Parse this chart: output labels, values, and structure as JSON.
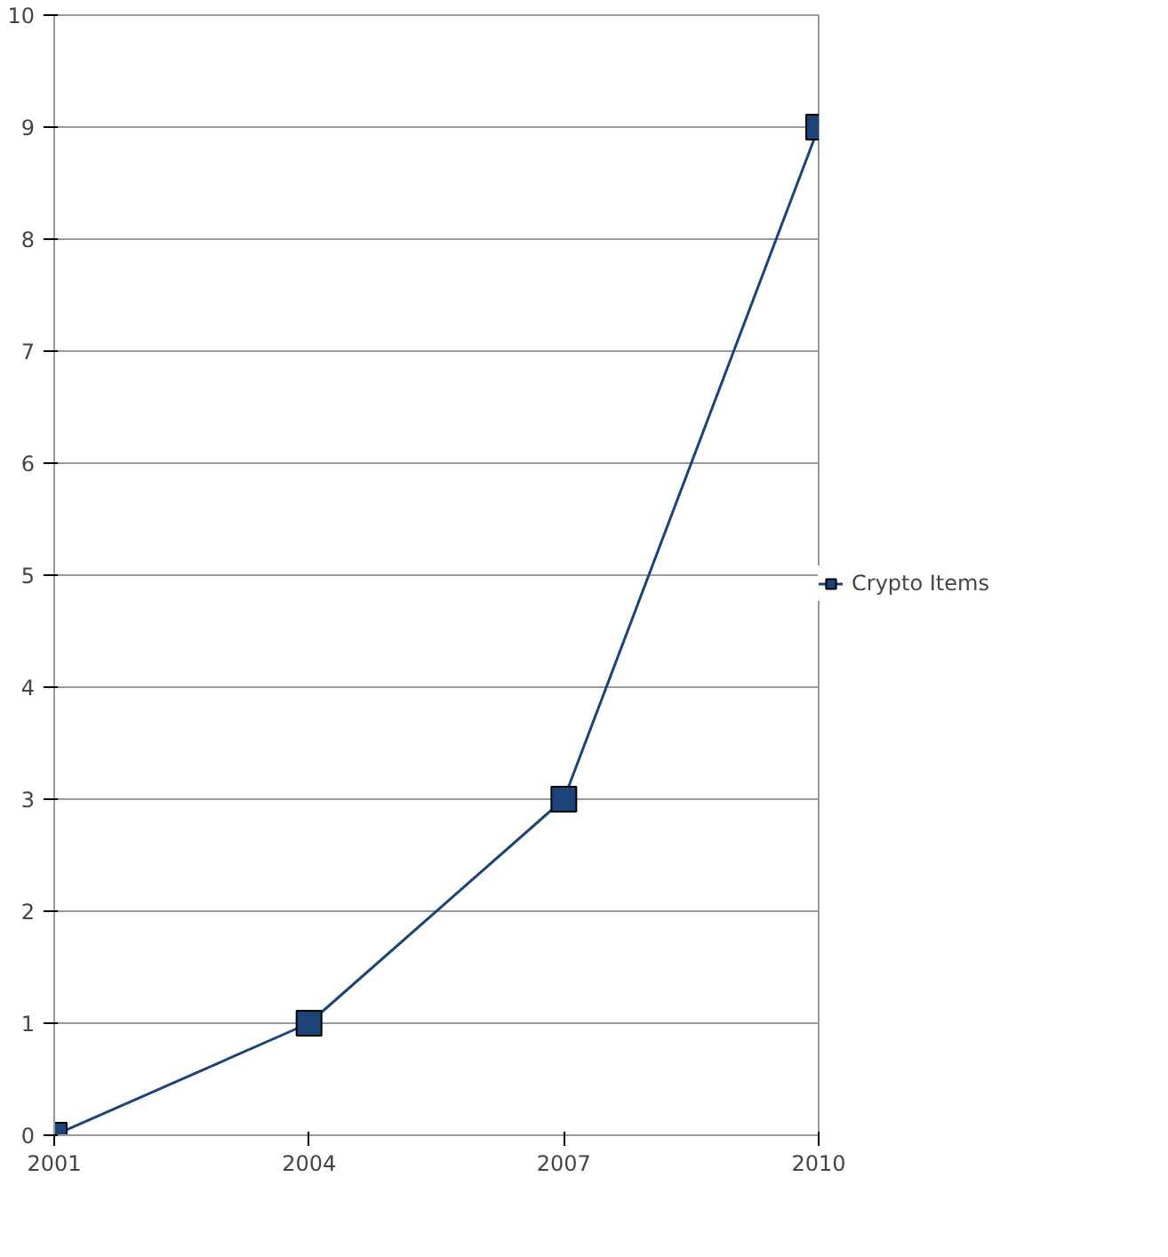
{
  "chart_data": {
    "type": "line",
    "categories": [
      "2001",
      "2004",
      "2007",
      "2010"
    ],
    "series": [
      {
        "name": "Crypto Items",
        "color": "#1c4478",
        "values": [
          0,
          1,
          3,
          9
        ]
      }
    ],
    "ylim": [
      0,
      10
    ],
    "yticks": [
      0,
      1,
      2,
      3,
      4,
      5,
      6,
      7,
      8,
      9,
      10
    ],
    "grid": "y",
    "legend": "right",
    "marker": "square",
    "line_style": "solid"
  }
}
